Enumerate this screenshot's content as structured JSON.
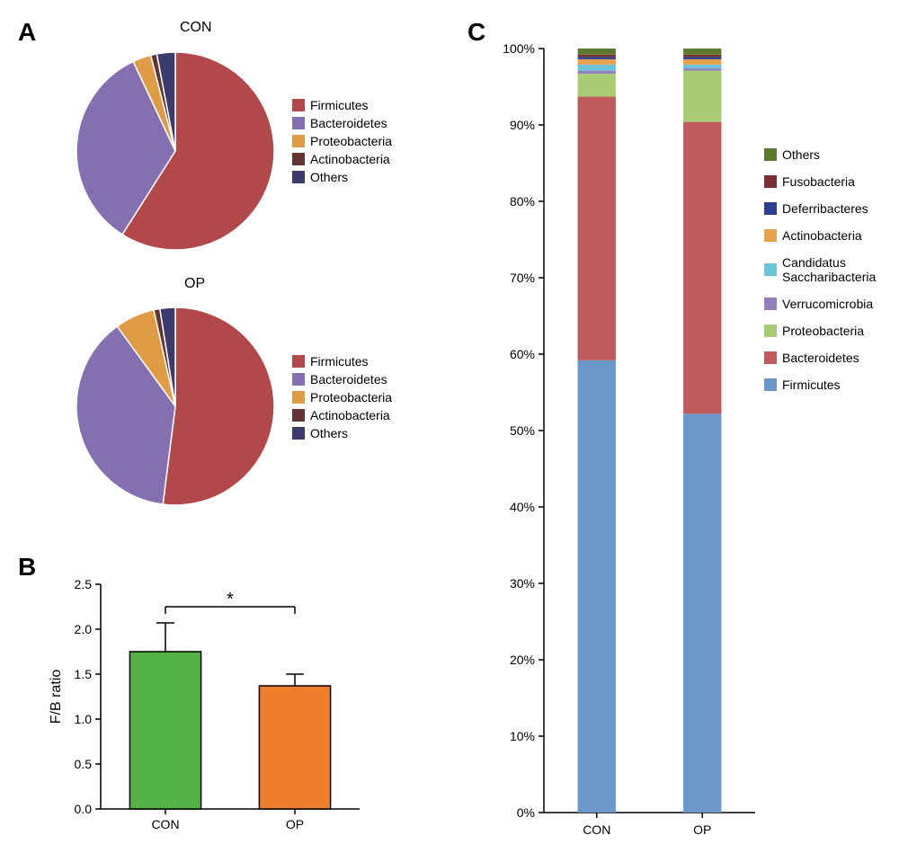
{
  "panels": {
    "A": {
      "label": "A"
    },
    "B": {
      "label": "B"
    },
    "C": {
      "label": "C"
    }
  },
  "pie_colors": {
    "Firmicutes": "#b24849",
    "Bacteroidetes": "#8470b1",
    "Proteobacteria": "#e09b45",
    "Actinobacteria": "#623432",
    "Others": "#3b3b6d"
  },
  "pie_CON": {
    "title": "CON",
    "type": "pie",
    "diameter": 220,
    "slices": [
      {
        "name": "Firmicutes",
        "value": 59,
        "color": "#b24849"
      },
      {
        "name": "Bacteroidetes",
        "value": 34,
        "color": "#8470b1"
      },
      {
        "name": "Proteobacteria",
        "value": 3,
        "color": "#e09b45"
      },
      {
        "name": "Actinobacteria",
        "value": 1,
        "color": "#623432"
      },
      {
        "name": "Others",
        "value": 3,
        "color": "#3b3b6d"
      }
    ],
    "border_color": "#ffffff",
    "border_width": 1.5,
    "legend_items": [
      "Firmicutes",
      "Bacteroidetes",
      "Proteobacteria",
      "Actinobacteria",
      "Others"
    ]
  },
  "pie_OP": {
    "title": "OP",
    "type": "pie",
    "diameter": 220,
    "slices": [
      {
        "name": "Firmicutes",
        "value": 52,
        "color": "#b24849"
      },
      {
        "name": "Bacteroidetes",
        "value": 38,
        "color": "#8470b1"
      },
      {
        "name": "Proteobacteria",
        "value": 6.5,
        "color": "#e09b45"
      },
      {
        "name": "Actinobacteria",
        "value": 1,
        "color": "#623432"
      },
      {
        "name": "Others",
        "value": 2.5,
        "color": "#3b3b6d"
      }
    ],
    "border_color": "#ffffff",
    "border_width": 1.5,
    "legend_items": [
      "Firmicutes",
      "Bacteroidetes",
      "Proteobacteria",
      "Actinobacteria",
      "Others"
    ]
  },
  "bar_B": {
    "type": "bar",
    "ylabel": "F/B ratio",
    "ylim": [
      0,
      2.5
    ],
    "ytick_step": 0.5,
    "categories": [
      "CON",
      "OP"
    ],
    "values": [
      1.75,
      1.37
    ],
    "errors": [
      0.32,
      0.13
    ],
    "bar_colors": [
      "#53b245",
      "#ec7e2c"
    ],
    "bar_width": 0.55,
    "sig_label": "*",
    "axis_color": "#000000",
    "label_fontsize": 16,
    "tick_fontsize": 14
  },
  "stacked_C": {
    "type": "stacked_bar",
    "ylim": [
      0,
      100
    ],
    "ytick_step": 10,
    "ytick_suffix": "%",
    "categories": [
      "CON",
      "OP"
    ],
    "bar_width": 0.18,
    "axis_color": "#000000",
    "label_fontsize": 14,
    "legend_order": [
      "Others",
      "Fusobacteria",
      "Deferribacteres",
      "Actinobacteria",
      "Candidatus Saccharibacteria",
      "Verrucomicrobia",
      "Proteobacteria",
      "Bacteroidetes",
      "Firmicutes"
    ],
    "colors": {
      "Firmicutes": "#6a98c9",
      "Bacteroidetes": "#bf5a5d",
      "Proteobacteria": "#a7cc74",
      "Verrucomicrobia": "#9580bd",
      "Candidatus Saccharibacteria": "#6bc4d8",
      "Actinobacteria": "#e6a24a",
      "Deferribacteres": "#2e3e8f",
      "Fusobacteria": "#7a3030",
      "Others": "#5c7a2f"
    },
    "data": {
      "CON": {
        "Firmicutes": 59.2,
        "Bacteroidetes": 34.5,
        "Proteobacteria": 3.0,
        "Verrucomicrobia": 0.4,
        "Candidatus Saccharibacteria": 0.8,
        "Actinobacteria": 0.7,
        "Deferribacteres": 0.3,
        "Fusobacteria": 0.3,
        "Others": 0.8
      },
      "OP": {
        "Firmicutes": 52.2,
        "Bacteroidetes": 38.2,
        "Proteobacteria": 6.7,
        "Verrucomicrobia": 0.3,
        "Candidatus Saccharibacteria": 0.5,
        "Actinobacteria": 0.7,
        "Deferribacteres": 0.3,
        "Fusobacteria": 0.3,
        "Others": 0.8
      }
    }
  }
}
